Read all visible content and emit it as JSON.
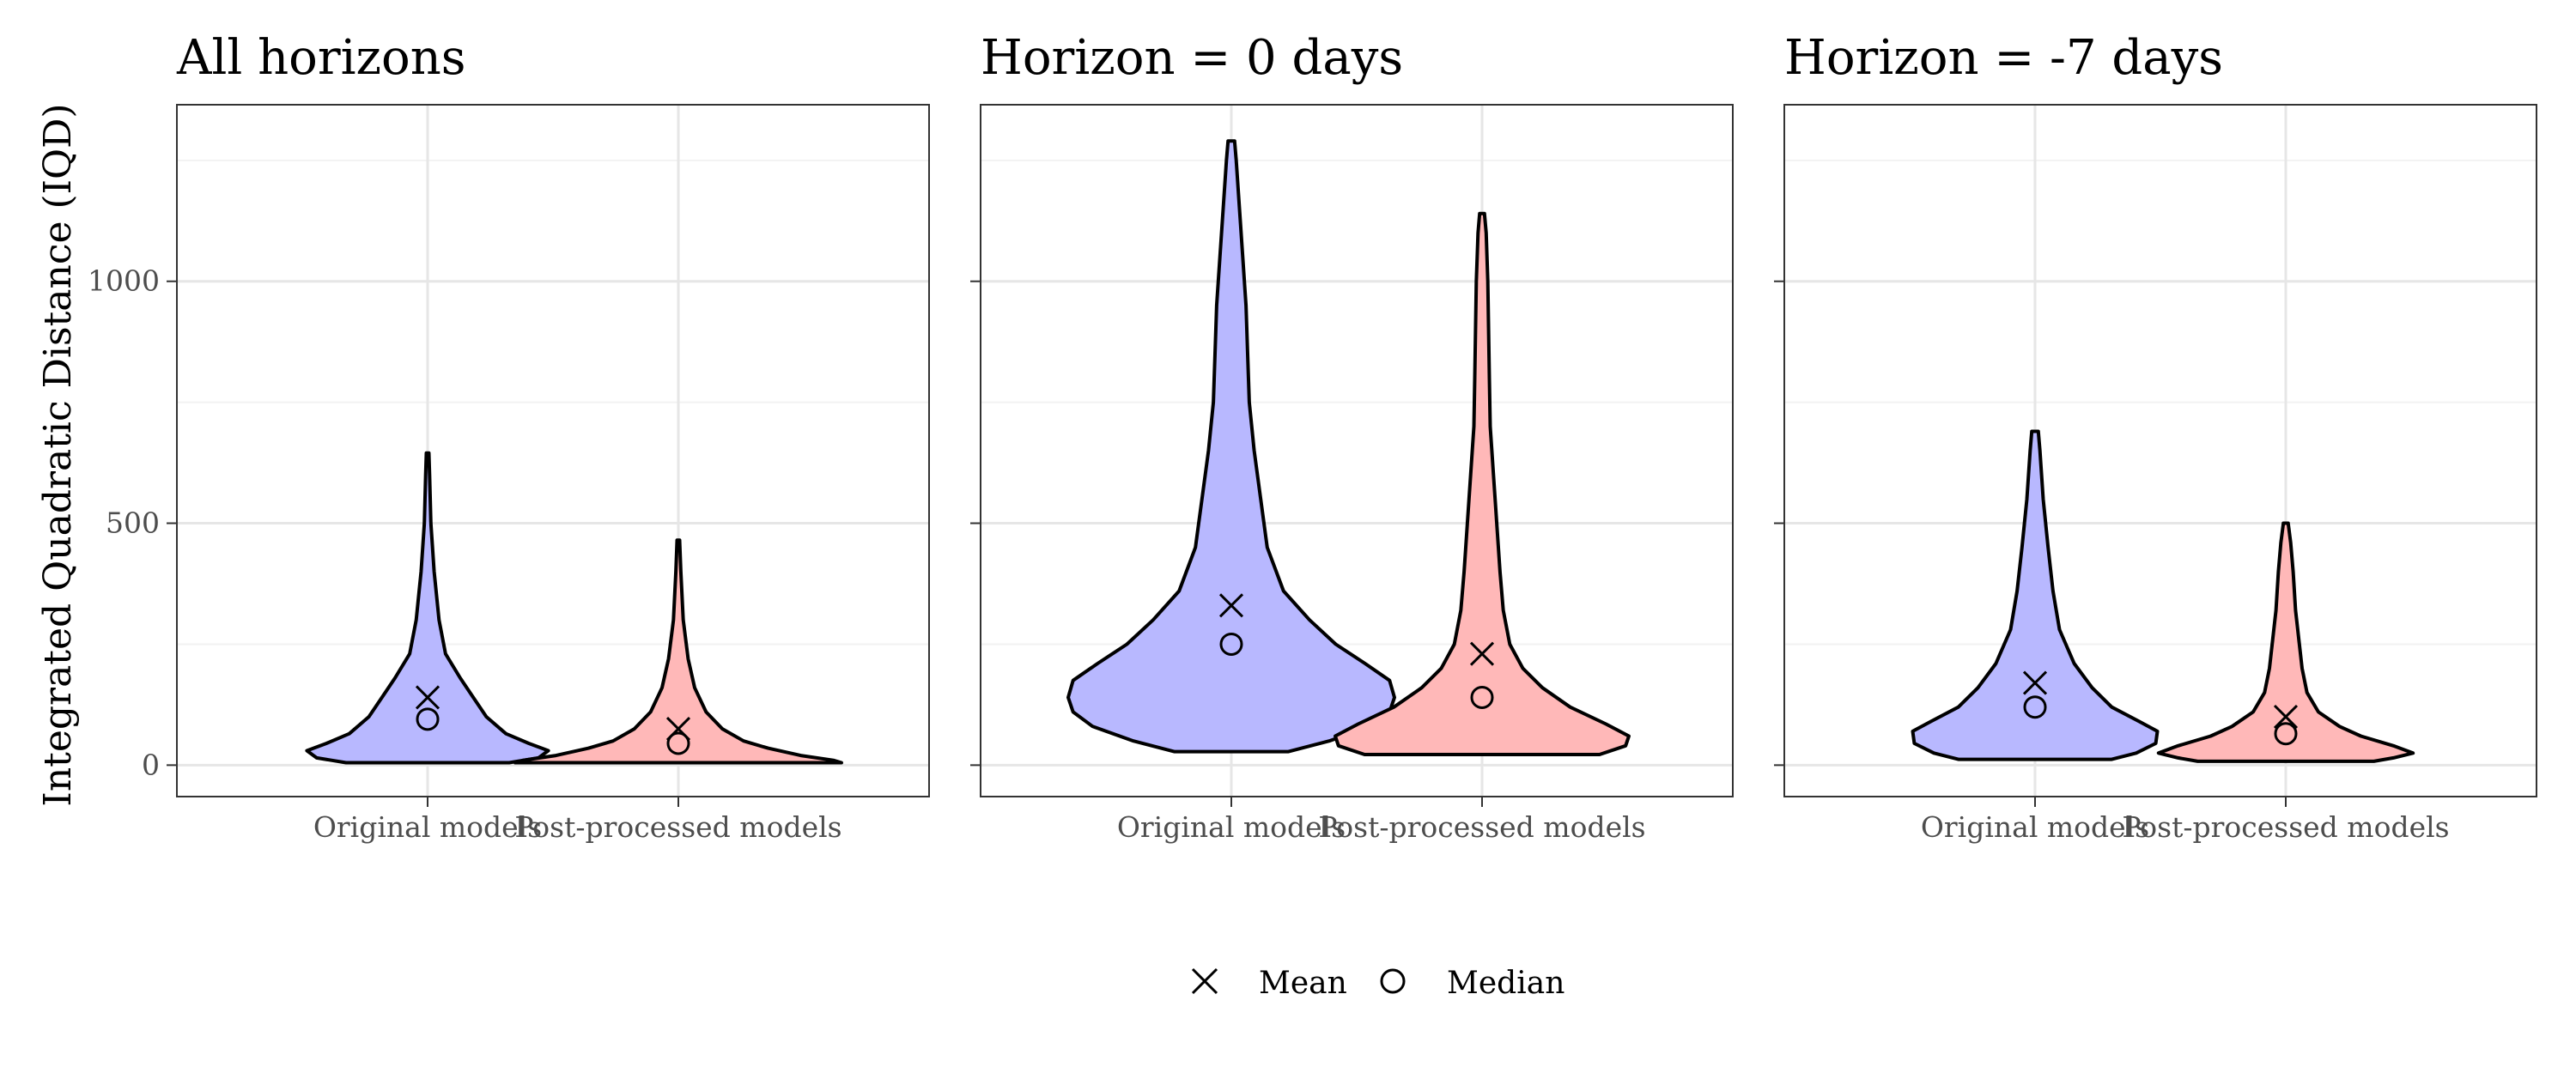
{
  "chart_data": [
    {
      "type": "violin",
      "title": "All horizons",
      "ylabel": "Integrated Quadratic Distance (IQD)",
      "ylim": [
        -65,
        1365
      ],
      "yticks": [
        0,
        500,
        1000
      ],
      "grid": true,
      "categories": [
        "Original models",
        "Post-processed models"
      ],
      "series": [
        {
          "category": "Original models",
          "color": "#b8b8ff",
          "min": 5,
          "max": 645,
          "mean": 140,
          "median": 95,
          "profile": [
            [
              5,
              0.5
            ],
            [
              15,
              0.68
            ],
            [
              30,
              0.74
            ],
            [
              45,
              0.62
            ],
            [
              65,
              0.48
            ],
            [
              100,
              0.36
            ],
            [
              140,
              0.28
            ],
            [
              180,
              0.2
            ],
            [
              230,
              0.11
            ],
            [
              300,
              0.07
            ],
            [
              400,
              0.04
            ],
            [
              500,
              0.02
            ],
            [
              600,
              0.012
            ],
            [
              645,
              0.008
            ]
          ]
        },
        {
          "category": "Post-processed models",
          "color": "#ffb8b8",
          "min": 5,
          "max": 465,
          "mean": 75,
          "median": 45,
          "profile": [
            [
              5,
              1.0
            ],
            [
              10,
              0.95
            ],
            [
              20,
              0.75
            ],
            [
              35,
              0.55
            ],
            [
              50,
              0.4
            ],
            [
              75,
              0.27
            ],
            [
              110,
              0.17
            ],
            [
              160,
              0.1
            ],
            [
              220,
              0.06
            ],
            [
              300,
              0.03
            ],
            [
              400,
              0.015
            ],
            [
              465,
              0.008
            ]
          ]
        }
      ]
    },
    {
      "type": "violin",
      "title": "Horizon = 0 days",
      "ylabel": "",
      "ylim": [
        -65,
        1365
      ],
      "yticks": [
        0,
        500,
        1000
      ],
      "grid": true,
      "categories": [
        "Original models",
        "Post-processed models"
      ],
      "series": [
        {
          "category": "Original models",
          "color": "#b8b8ff",
          "min": 28,
          "max": 1290,
          "mean": 330,
          "median": 250,
          "profile": [
            [
              28,
              0.35
            ],
            [
              50,
              0.6
            ],
            [
              80,
              0.85
            ],
            [
              110,
              0.97
            ],
            [
              140,
              1.0
            ],
            [
              175,
              0.97
            ],
            [
              210,
              0.82
            ],
            [
              250,
              0.64
            ],
            [
              300,
              0.48
            ],
            [
              360,
              0.32
            ],
            [
              450,
              0.22
            ],
            [
              550,
              0.18
            ],
            [
              650,
              0.14
            ],
            [
              750,
              0.11
            ],
            [
              850,
              0.1
            ],
            [
              950,
              0.09
            ],
            [
              1050,
              0.07
            ],
            [
              1150,
              0.05
            ],
            [
              1250,
              0.03
            ],
            [
              1290,
              0.02
            ]
          ]
        },
        {
          "category": "Post-processed models",
          "color": "#ffb8b8",
          "min": 22,
          "max": 1140,
          "mean": 230,
          "median": 140,
          "profile": [
            [
              22,
              0.72
            ],
            [
              40,
              0.88
            ],
            [
              60,
              0.9
            ],
            [
              85,
              0.76
            ],
            [
              120,
              0.54
            ],
            [
              160,
              0.37
            ],
            [
              200,
              0.25
            ],
            [
              250,
              0.17
            ],
            [
              320,
              0.13
            ],
            [
              400,
              0.11
            ],
            [
              500,
              0.09
            ],
            [
              600,
              0.07
            ],
            [
              700,
              0.05
            ],
            [
              800,
              0.045
            ],
            [
              900,
              0.04
            ],
            [
              1000,
              0.035
            ],
            [
              1100,
              0.025
            ],
            [
              1140,
              0.015
            ]
          ]
        }
      ]
    },
    {
      "type": "violin",
      "title": "Horizon = -7 days",
      "ylabel": "",
      "ylim": [
        -65,
        1365
      ],
      "yticks": [
        0,
        500,
        1000
      ],
      "grid": true,
      "categories": [
        "Original models",
        "Post-processed models"
      ],
      "series": [
        {
          "category": "Original models",
          "color": "#b8b8ff",
          "min": 12,
          "max": 690,
          "mean": 170,
          "median": 120,
          "profile": [
            [
              12,
              0.47
            ],
            [
              25,
              0.62
            ],
            [
              45,
              0.74
            ],
            [
              70,
              0.75
            ],
            [
              90,
              0.64
            ],
            [
              120,
              0.47
            ],
            [
              160,
              0.35
            ],
            [
              210,
              0.24
            ],
            [
              280,
              0.15
            ],
            [
              360,
              0.11
            ],
            [
              450,
              0.08
            ],
            [
              550,
              0.05
            ],
            [
              650,
              0.03
            ],
            [
              690,
              0.02
            ]
          ]
        },
        {
          "category": "Post-processed models",
          "color": "#ffb8b8",
          "min": 8,
          "max": 500,
          "mean": 100,
          "median": 65,
          "profile": [
            [
              8,
              0.54
            ],
            [
              15,
              0.66
            ],
            [
              25,
              0.78
            ],
            [
              40,
              0.66
            ],
            [
              60,
              0.46
            ],
            [
              80,
              0.33
            ],
            [
              110,
              0.2
            ],
            [
              150,
              0.13
            ],
            [
              200,
              0.1
            ],
            [
              260,
              0.08
            ],
            [
              320,
              0.06
            ],
            [
              400,
              0.045
            ],
            [
              460,
              0.03
            ],
            [
              500,
              0.015
            ]
          ]
        }
      ]
    }
  ],
  "legend": {
    "position": "bottom",
    "items": [
      {
        "label": "Mean",
        "marker": "x-marker"
      },
      {
        "label": "Median",
        "marker": "circle-marker"
      }
    ]
  }
}
